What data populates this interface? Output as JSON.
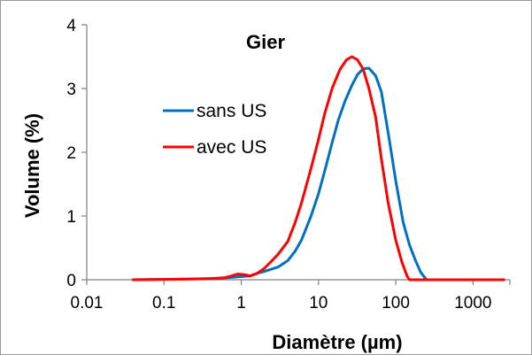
{
  "chart_data": {
    "type": "line",
    "title": "Gier",
    "xlabel": "Diamètre (µm)",
    "ylabel": "Volume (%)",
    "x_scale": "log",
    "xlim": [
      0.01,
      3000
    ],
    "ylim": [
      0,
      4
    ],
    "x_ticks": [
      "0.01",
      "0.1",
      "1",
      "10",
      "100",
      "1000"
    ],
    "y_ticks": [
      "0",
      "1",
      "2",
      "3",
      "4"
    ],
    "grid": false,
    "legend_position": "center-left",
    "series": [
      {
        "name": "sans US",
        "color": "#0070C0",
        "points": [
          [
            0.04,
            0
          ],
          [
            0.2,
            0.01
          ],
          [
            0.5,
            0.02
          ],
          [
            0.8,
            0.04
          ],
          [
            1.0,
            0.05
          ],
          [
            1.3,
            0.06
          ],
          [
            1.6,
            0.1
          ],
          [
            2.0,
            0.13
          ],
          [
            2.5,
            0.17
          ],
          [
            3.0,
            0.2
          ],
          [
            4.0,
            0.3
          ],
          [
            5.0,
            0.45
          ],
          [
            6.0,
            0.62
          ],
          [
            8.0,
            1.0
          ],
          [
            10.0,
            1.35
          ],
          [
            12.0,
            1.7
          ],
          [
            15.0,
            2.15
          ],
          [
            18.0,
            2.5
          ],
          [
            22.0,
            2.8
          ],
          [
            27.0,
            3.05
          ],
          [
            32.0,
            3.22
          ],
          [
            38.0,
            3.31
          ],
          [
            45.0,
            3.32
          ],
          [
            55.0,
            3.2
          ],
          [
            65.0,
            2.95
          ],
          [
            80.0,
            2.3
          ],
          [
            100.0,
            1.55
          ],
          [
            125.0,
            0.9
          ],
          [
            150.0,
            0.55
          ],
          [
            180.0,
            0.3
          ],
          [
            210.0,
            0.12
          ],
          [
            250.0,
            0
          ],
          [
            400.0,
            0
          ],
          [
            2500.0,
            0
          ]
        ]
      },
      {
        "name": "avec US",
        "color": "#FF0000",
        "points": [
          [
            0.04,
            0
          ],
          [
            0.2,
            0.01
          ],
          [
            0.4,
            0.02
          ],
          [
            0.6,
            0.03
          ],
          [
            0.75,
            0.06
          ],
          [
            0.9,
            0.09
          ],
          [
            1.1,
            0.08
          ],
          [
            1.3,
            0.06
          ],
          [
            1.6,
            0.1
          ],
          [
            2.0,
            0.18
          ],
          [
            2.5,
            0.3
          ],
          [
            3.0,
            0.4
          ],
          [
            4.0,
            0.6
          ],
          [
            5.0,
            0.9
          ],
          [
            6.0,
            1.2
          ],
          [
            8.0,
            1.75
          ],
          [
            10.0,
            2.2
          ],
          [
            12.0,
            2.6
          ],
          [
            15.0,
            3.0
          ],
          [
            19.0,
            3.3
          ],
          [
            23.0,
            3.45
          ],
          [
            27.0,
            3.5
          ],
          [
            32.0,
            3.45
          ],
          [
            38.0,
            3.3
          ],
          [
            45.0,
            3.0
          ],
          [
            55.0,
            2.55
          ],
          [
            65.0,
            1.9
          ],
          [
            80.0,
            1.2
          ],
          [
            100.0,
            0.62
          ],
          [
            120.0,
            0.28
          ],
          [
            140.0,
            0.06
          ],
          [
            150.0,
            0
          ],
          [
            300.0,
            0
          ],
          [
            2500.0,
            0
          ]
        ]
      }
    ]
  }
}
